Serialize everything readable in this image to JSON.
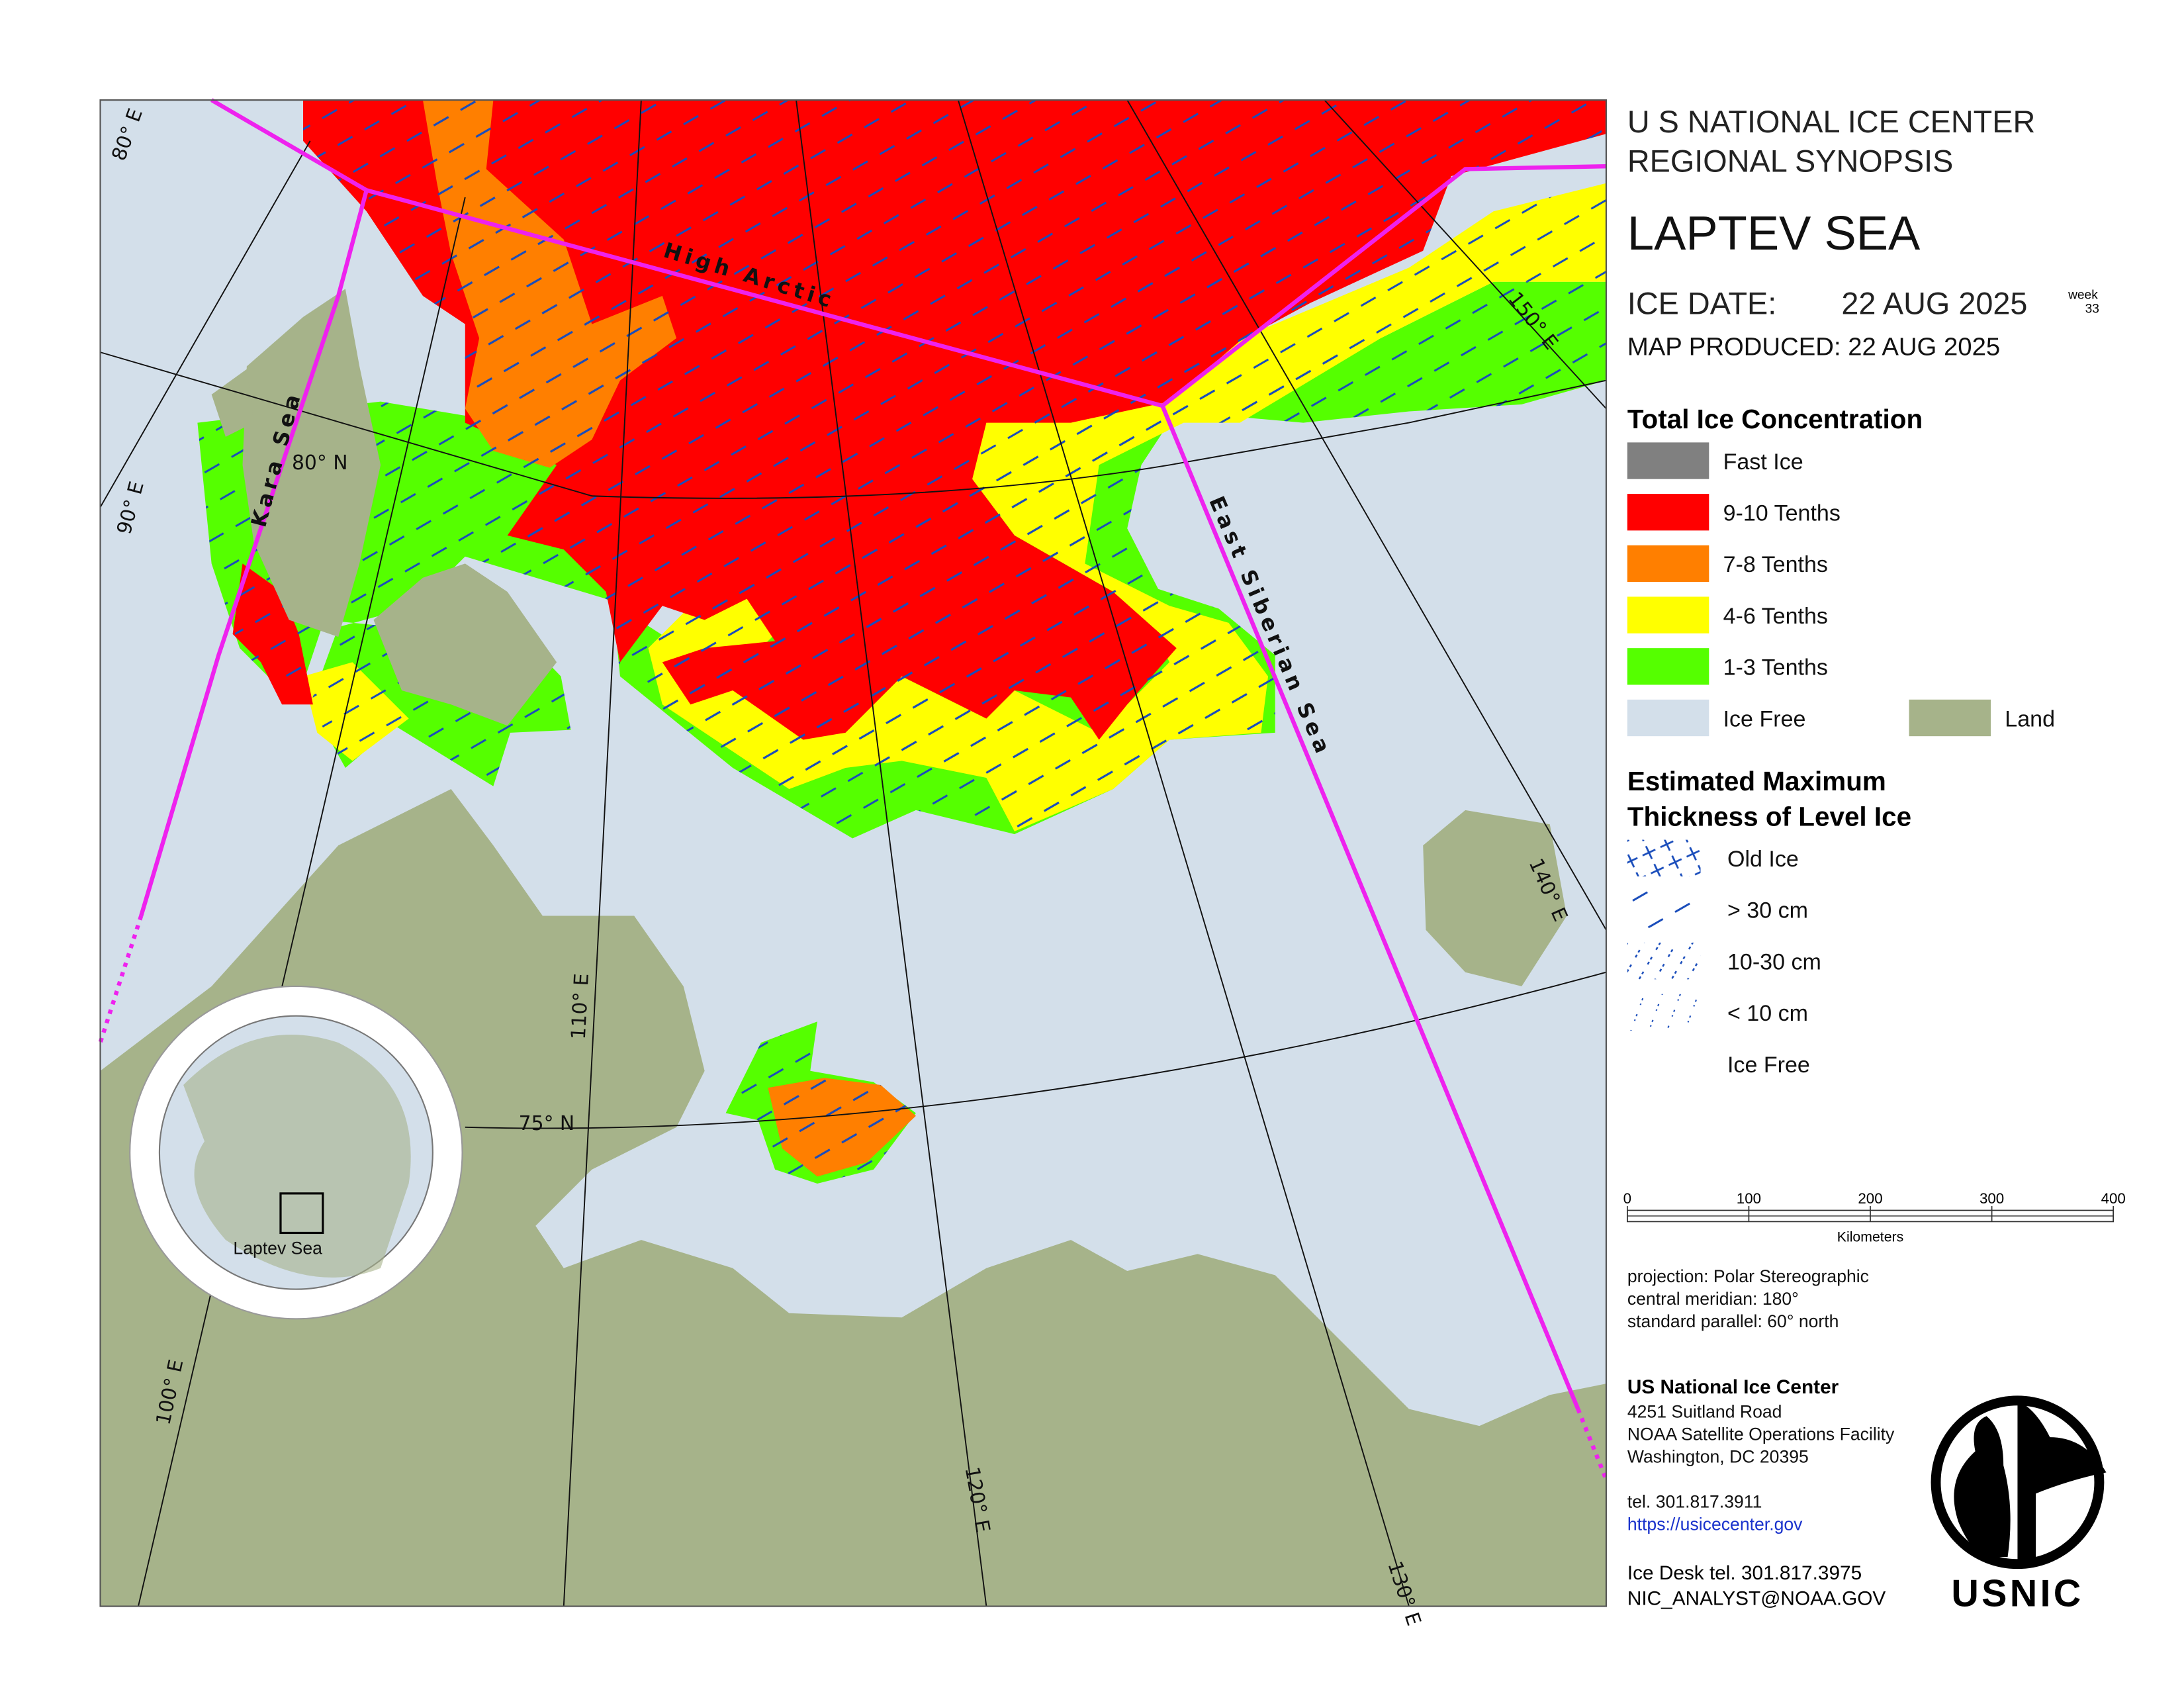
{
  "header": {
    "agency": "U S NATIONAL ICE CENTER",
    "product": "REGIONAL SYNOPSIS",
    "region": "LAPTEV SEA",
    "ice_date_label": "ICE DATE:",
    "ice_date": "22 AUG 2025",
    "week_label": "week",
    "week": "33",
    "map_produced": "MAP PRODUCED:  22 AUG 2025"
  },
  "concentration_legend": {
    "title": "Total Ice Concentration",
    "items": [
      {
        "label": "Fast Ice",
        "color": "#808080"
      },
      {
        "label": "9-10 Tenths",
        "color": "#ff0000"
      },
      {
        "label": "7-8 Tenths",
        "color": "#ff7f00"
      },
      {
        "label": "4-6 Tenths",
        "color": "#ffff00"
      },
      {
        "label": "1-3 Tenths",
        "color": "#55ff00"
      },
      {
        "label": "Ice Free",
        "color": "#d3dfea"
      }
    ],
    "land": {
      "label": "Land",
      "color": "#a6b38a"
    }
  },
  "thickness_legend": {
    "title_lines": [
      "Estimated Maximum",
      "Thickness of Level Ice"
    ],
    "items": [
      "Old Ice",
      "> 30 cm",
      "10-30 cm",
      "< 10 cm",
      "Ice Free"
    ]
  },
  "scale_bar": {
    "ticks": [
      0,
      100,
      200,
      300,
      400
    ],
    "unit": "Kilometers"
  },
  "projection": [
    "projection: Polar Stereographic",
    "central meridian: 180°",
    "standard parallel:  60° north"
  ],
  "contact": {
    "name": "US National Ice Center",
    "address": [
      "4251 Suitland Road",
      "NOAA Satellite Operations Facility",
      "Washington, DC  20395"
    ],
    "tel": "tel. 301.817.3911",
    "url": "https://usicecenter.gov",
    "ice_desk": "Ice Desk tel. 301.817.3975",
    "email": "NIC_ANALYST@NOAA.GOV"
  },
  "map_labels": {
    "high_arctic": "High Arctic",
    "kara_sea": "Kara Sea",
    "east_siberian_sea": "East Siberian Sea",
    "lat_80": "80° N",
    "lat_75": "75° N",
    "lon_80": "80° E",
    "lon_90": "90° E",
    "lon_100": "100° E",
    "lon_110": "110° E",
    "lon_120": "120° E",
    "lon_130": "130° E",
    "lon_140": "140° E",
    "lon_150": "150° E"
  },
  "inset_label": "Laptev Sea",
  "logo_text": "USNIC"
}
